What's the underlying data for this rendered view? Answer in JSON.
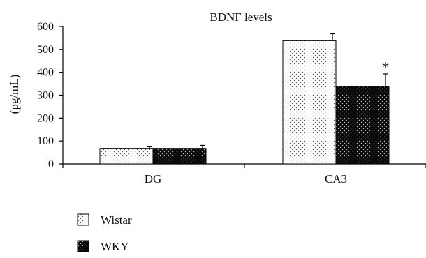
{
  "chart_data": {
    "type": "bar",
    "title": "BDNF levels",
    "ylabel": "(pg/mL)",
    "xlabel": "",
    "categories": [
      "DG",
      "CA3"
    ],
    "ylim": [
      0,
      600
    ],
    "yticks": [
      0,
      100,
      200,
      300,
      400,
      500,
      600
    ],
    "series": [
      {
        "name": "Wistar",
        "values": [
          68,
          538
        ],
        "errors": [
          7,
          30
        ],
        "pattern": "light-dotted"
      },
      {
        "name": "WKY",
        "values": [
          68,
          338
        ],
        "errors": [
          13,
          55
        ],
        "pattern": "dark-dotted"
      }
    ],
    "annotations": [
      {
        "text": "*",
        "category": "CA3",
        "series": "WKY"
      }
    ],
    "legend": "bottom-left",
    "grid": false
  }
}
